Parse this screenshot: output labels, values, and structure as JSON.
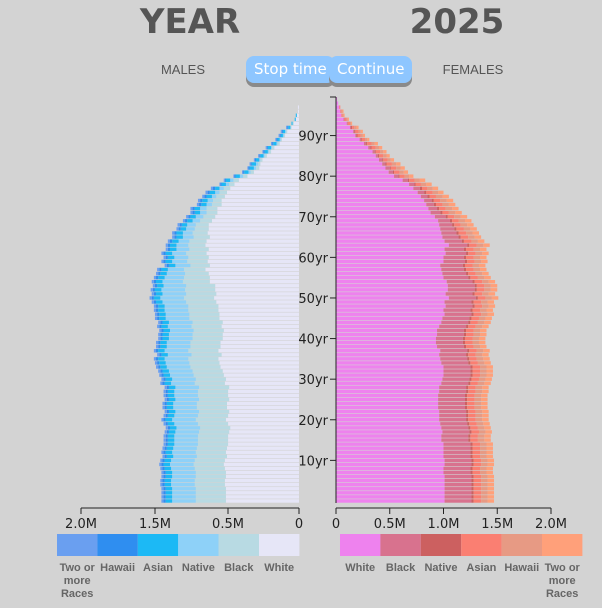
{
  "header": {
    "year_label": "YEAR",
    "year_value": "2025",
    "males_label": "MALES",
    "females_label": "FEMALES",
    "stop_button": "Stop time",
    "continue_button": "Continue"
  },
  "chart_data": {
    "type": "bar",
    "title": "YEAR 2025",
    "subtitle": "",
    "orientation": "horizontal-population-pyramid",
    "y_axis": {
      "ticks": [
        "10yr",
        "20yr",
        "30yr",
        "40yr",
        "50yr",
        "60yr",
        "70yr",
        "80yr",
        "90yr"
      ]
    },
    "x_axis_males": {
      "ticks": [
        "2.0M",
        "1.5M",
        "0.5M",
        "0"
      ]
    },
    "x_axis_females": {
      "ticks": [
        "0",
        "0.5M",
        "1.0M",
        "1.5M",
        "2.0M"
      ]
    },
    "male_legend": [
      {
        "name": "Two or more Races",
        "color": "#6a9ff0"
      },
      {
        "name": "Hawaii",
        "color": "#2f8ef0"
      },
      {
        "name": "Asian",
        "color": "#1cb9f5"
      },
      {
        "name": "Native",
        "color": "#8ed1f8"
      },
      {
        "name": "Black",
        "color": "#b8dae3"
      },
      {
        "name": "White",
        "color": "#e6e6f7"
      }
    ],
    "female_legend": [
      {
        "name": "White",
        "color": "#ee82ee"
      },
      {
        "name": "Black",
        "color": "#d8728e"
      },
      {
        "name": "Native",
        "color": "#cc6060"
      },
      {
        "name": "Asian",
        "color": "#fa7f72"
      },
      {
        "name": "Hawaii",
        "color": "#e79a84"
      },
      {
        "name": "Two or more Races",
        "color": "#ffa07a"
      }
    ],
    "male_series": {
      "White": [
        0.68,
        0.68,
        0.68,
        0.68,
        0.69,
        0.69,
        0.68,
        0.68,
        0.69,
        0.7,
        0.69,
        0.67,
        0.68,
        0.67,
        0.66,
        0.66,
        0.66,
        0.65,
        0.64,
        0.66,
        0.68,
        0.66,
        0.65,
        0.67,
        0.67,
        0.65,
        0.66,
        0.66,
        0.65,
        0.69,
        0.68,
        0.7,
        0.71,
        0.73,
        0.74,
        0.75,
        0.72,
        0.75,
        0.73,
        0.73,
        0.71,
        0.71,
        0.7,
        0.72,
        0.71,
        0.74,
        0.74,
        0.75,
        0.75,
        0.77,
        0.79,
        0.77,
        0.78,
        0.78,
        0.83,
        0.83,
        0.84,
        0.87,
        0.83,
        0.85,
        0.84,
        0.86,
        0.84,
        0.87,
        0.86,
        0.83,
        0.85,
        0.84,
        0.84,
        0.81,
        0.78,
        0.76,
        0.76,
        0.72,
        0.72,
        0.69,
        0.67,
        0.64,
        0.6,
        0.56,
        0.48,
        0.42,
        0.37,
        0.36,
        0.34,
        0.3,
        0.26,
        0.23,
        0.18,
        0.16,
        0.13,
        0.11,
        0.07,
        0.05,
        0.03,
        0.02,
        0.01,
        0.01,
        0.0,
        0.0
      ],
      "Black": [
        0.28,
        0.28,
        0.28,
        0.28,
        0.28,
        0.28,
        0.28,
        0.28,
        0.28,
        0.28,
        0.28,
        0.28,
        0.28,
        0.28,
        0.28,
        0.28,
        0.28,
        0.28,
        0.28,
        0.28,
        0.28,
        0.28,
        0.28,
        0.28,
        0.28,
        0.28,
        0.28,
        0.28,
        0.28,
        0.28,
        0.28,
        0.28,
        0.28,
        0.28,
        0.28,
        0.28,
        0.28,
        0.28,
        0.28,
        0.28,
        0.28,
        0.28,
        0.28,
        0.28,
        0.28,
        0.28,
        0.28,
        0.28,
        0.28,
        0.28,
        0.28,
        0.28,
        0.28,
        0.27,
        0.25,
        0.24,
        0.22,
        0.2,
        0.18,
        0.19,
        0.19,
        0.19,
        0.18,
        0.16,
        0.16,
        0.15,
        0.14,
        0.13,
        0.12,
        0.11,
        0.11,
        0.1,
        0.1,
        0.09,
        0.08,
        0.08,
        0.07,
        0.06,
        0.05,
        0.05,
        0.04,
        0.03,
        0.03,
        0.02,
        0.02,
        0.02,
        0.02,
        0.02,
        0.02,
        0.01,
        0.01,
        0.01,
        0.01,
        0.01,
        0.0,
        0.0,
        0.0,
        0.0,
        0.0,
        0.0
      ],
      "Native": [
        0.22,
        0.22,
        0.22,
        0.22,
        0.22,
        0.22,
        0.22,
        0.22,
        0.22,
        0.22,
        0.22,
        0.22,
        0.22,
        0.22,
        0.22,
        0.22,
        0.22,
        0.22,
        0.22,
        0.22,
        0.22,
        0.22,
        0.22,
        0.22,
        0.22,
        0.22,
        0.22,
        0.22,
        0.22,
        0.22,
        0.22,
        0.22,
        0.22,
        0.22,
        0.22,
        0.22,
        0.22,
        0.22,
        0.22,
        0.22,
        0.22,
        0.22,
        0.22,
        0.22,
        0.22,
        0.22,
        0.22,
        0.22,
        0.22,
        0.22,
        0.22,
        0.22,
        0.22,
        0.21,
        0.19,
        0.18,
        0.17,
        0.15,
        0.14,
        0.14,
        0.13,
        0.13,
        0.12,
        0.11,
        0.1,
        0.1,
        0.09,
        0.08,
        0.08,
        0.07,
        0.07,
        0.06,
        0.06,
        0.05,
        0.05,
        0.04,
        0.04,
        0.04,
        0.03,
        0.03,
        0.03,
        0.02,
        0.02,
        0.02,
        0.01,
        0.01,
        0.01,
        0.01,
        0.01,
        0.01,
        0.01,
        0.01,
        0.0,
        0.0,
        0.0,
        0.0,
        0.0,
        0.0,
        0.0,
        0.0
      ],
      "Asian": [
        0.06,
        0.06,
        0.06,
        0.06,
        0.06,
        0.06,
        0.06,
        0.06,
        0.06,
        0.06,
        0.06,
        0.06,
        0.06,
        0.06,
        0.06,
        0.06,
        0.06,
        0.06,
        0.06,
        0.06,
        0.06,
        0.06,
        0.06,
        0.06,
        0.06,
        0.06,
        0.06,
        0.06,
        0.06,
        0.06,
        0.06,
        0.06,
        0.06,
        0.06,
        0.06,
        0.06,
        0.06,
        0.06,
        0.06,
        0.06,
        0.06,
        0.06,
        0.06,
        0.06,
        0.06,
        0.06,
        0.06,
        0.06,
        0.06,
        0.06,
        0.06,
        0.06,
        0.06,
        0.06,
        0.06,
        0.06,
        0.06,
        0.06,
        0.06,
        0.06,
        0.06,
        0.06,
        0.06,
        0.06,
        0.06,
        0.06,
        0.06,
        0.05,
        0.05,
        0.05,
        0.05,
        0.05,
        0.05,
        0.05,
        0.05,
        0.05,
        0.05,
        0.04,
        0.04,
        0.04,
        0.04,
        0.04,
        0.04,
        0.04,
        0.03,
        0.03,
        0.03,
        0.03,
        0.03,
        0.02,
        0.02,
        0.02,
        0.02,
        0.01,
        0.01,
        0.01,
        0.0,
        0.0,
        0.0,
        0.0
      ],
      "Hawaii": [
        0.02,
        0.02,
        0.02,
        0.02,
        0.02,
        0.02,
        0.02,
        0.02,
        0.02,
        0.02,
        0.02,
        0.02,
        0.02,
        0.02,
        0.02,
        0.02,
        0.02,
        0.02,
        0.02,
        0.02,
        0.02,
        0.02,
        0.02,
        0.02,
        0.02,
        0.02,
        0.02,
        0.02,
        0.02,
        0.02,
        0.02,
        0.02,
        0.02,
        0.02,
        0.02,
        0.02,
        0.02,
        0.02,
        0.02,
        0.02,
        0.02,
        0.02,
        0.02,
        0.02,
        0.02,
        0.02,
        0.02,
        0.02,
        0.02,
        0.02,
        0.02,
        0.02,
        0.02,
        0.02,
        0.02,
        0.02,
        0.02,
        0.02,
        0.02,
        0.02,
        0.02,
        0.02,
        0.02,
        0.02,
        0.02,
        0.02,
        0.02,
        0.02,
        0.02,
        0.02,
        0.02,
        0.02,
        0.02,
        0.02,
        0.02,
        0.02,
        0.02,
        0.02,
        0.01,
        0.01,
        0.01,
        0.01,
        0.01,
        0.01,
        0.01,
        0.01,
        0.01,
        0.01,
        0.01,
        0.01,
        0.01,
        0.01,
        0.01,
        0.0,
        0.0,
        0.0,
        0.0,
        0.0,
        0.0,
        0.0
      ],
      "Two or more Races": [
        0.02,
        0.02,
        0.02,
        0.02,
        0.02,
        0.02,
        0.02,
        0.02,
        0.02,
        0.02,
        0.02,
        0.02,
        0.02,
        0.02,
        0.02,
        0.02,
        0.02,
        0.02,
        0.02,
        0.02,
        0.02,
        0.02,
        0.02,
        0.02,
        0.02,
        0.02,
        0.02,
        0.02,
        0.02,
        0.02,
        0.02,
        0.02,
        0.02,
        0.02,
        0.02,
        0.02,
        0.02,
        0.02,
        0.02,
        0.02,
        0.02,
        0.02,
        0.02,
        0.02,
        0.02,
        0.02,
        0.02,
        0.02,
        0.02,
        0.02,
        0.02,
        0.02,
        0.02,
        0.02,
        0.02,
        0.02,
        0.02,
        0.02,
        0.02,
        0.02,
        0.02,
        0.02,
        0.02,
        0.02,
        0.02,
        0.02,
        0.02,
        0.02,
        0.02,
        0.02,
        0.02,
        0.02,
        0.02,
        0.02,
        0.02,
        0.02,
        0.02,
        0.02,
        0.01,
        0.01,
        0.01,
        0.01,
        0.01,
        0.01,
        0.01,
        0.01,
        0.01,
        0.01,
        0.01,
        0.01,
        0.01,
        0.01,
        0.01,
        0.0,
        0.0,
        0.0,
        0.0,
        0.0,
        0.0,
        0.0
      ]
    },
    "female_series": {
      "White": [
        1.01,
        1.01,
        1.01,
        1.01,
        1.01,
        1.01,
        1.01,
        1.0,
        1.0,
        1.01,
        1.01,
        1.0,
        1.0,
        1.0,
        1.0,
        0.98,
        0.98,
        0.99,
        0.98,
        0.97,
        0.96,
        0.96,
        0.96,
        0.95,
        0.95,
        0.95,
        0.95,
        0.96,
        0.96,
        0.98,
        0.99,
        1.0,
        1.0,
        1.0,
        0.98,
        0.97,
        0.96,
        0.97,
        0.94,
        0.93,
        0.93,
        0.94,
        0.94,
        0.96,
        0.98,
        0.99,
        1.01,
        1.0,
        1.02,
        1.01,
        1.05,
        1.02,
        1.04,
        1.04,
        1.03,
        1.0,
        0.99,
        0.98,
        0.97,
        1.0,
        1.0,
        1.02,
        1.01,
        1.05,
        1.01,
        0.99,
        0.98,
        0.97,
        0.96,
        0.95,
        0.92,
        0.88,
        0.86,
        0.84,
        0.82,
        0.79,
        0.76,
        0.72,
        0.68,
        0.62,
        0.54,
        0.49,
        0.46,
        0.43,
        0.4,
        0.37,
        0.34,
        0.3,
        0.26,
        0.22,
        0.18,
        0.16,
        0.13,
        0.1,
        0.07,
        0.05,
        0.04,
        0.03,
        0.02,
        0.01
      ],
      "Black": [
        0.25,
        0.25,
        0.25,
        0.25,
        0.25,
        0.25,
        0.25,
        0.25,
        0.25,
        0.25,
        0.25,
        0.25,
        0.25,
        0.25,
        0.25,
        0.25,
        0.25,
        0.25,
        0.25,
        0.25,
        0.25,
        0.25,
        0.25,
        0.25,
        0.25,
        0.25,
        0.25,
        0.25,
        0.25,
        0.25,
        0.25,
        0.25,
        0.25,
        0.25,
        0.25,
        0.25,
        0.25,
        0.25,
        0.25,
        0.25,
        0.25,
        0.25,
        0.25,
        0.25,
        0.25,
        0.25,
        0.25,
        0.25,
        0.25,
        0.25,
        0.25,
        0.25,
        0.25,
        0.25,
        0.24,
        0.23,
        0.22,
        0.21,
        0.21,
        0.2,
        0.19,
        0.19,
        0.18,
        0.17,
        0.16,
        0.15,
        0.14,
        0.13,
        0.12,
        0.11,
        0.1,
        0.09,
        0.08,
        0.07,
        0.07,
        0.06,
        0.06,
        0.06,
        0.05,
        0.05,
        0.04,
        0.04,
        0.04,
        0.03,
        0.03,
        0.02,
        0.02,
        0.02,
        0.02,
        0.01,
        0.01,
        0.01,
        0.01,
        0.01,
        0.01,
        0.0,
        0.0,
        0.0,
        0.0,
        0.0
      ],
      "Native": [
        0.02,
        0.02,
        0.02,
        0.02,
        0.02,
        0.02,
        0.02,
        0.02,
        0.02,
        0.02,
        0.02,
        0.02,
        0.02,
        0.02,
        0.02,
        0.02,
        0.02,
        0.02,
        0.02,
        0.02,
        0.02,
        0.02,
        0.02,
        0.02,
        0.02,
        0.02,
        0.02,
        0.02,
        0.02,
        0.02,
        0.02,
        0.02,
        0.02,
        0.02,
        0.02,
        0.02,
        0.02,
        0.02,
        0.02,
        0.02,
        0.02,
        0.02,
        0.02,
        0.02,
        0.02,
        0.02,
        0.02,
        0.02,
        0.02,
        0.02,
        0.02,
        0.02,
        0.02,
        0.02,
        0.02,
        0.02,
        0.02,
        0.02,
        0.02,
        0.02,
        0.02,
        0.02,
        0.02,
        0.02,
        0.02,
        0.02,
        0.02,
        0.02,
        0.02,
        0.02,
        0.02,
        0.02,
        0.02,
        0.02,
        0.02,
        0.02,
        0.02,
        0.02,
        0.01,
        0.01,
        0.01,
        0.01,
        0.01,
        0.01,
        0.01,
        0.01,
        0.01,
        0.01,
        0.01,
        0.01,
        0.01,
        0.01,
        0.01,
        0.0,
        0.0,
        0.0,
        0.0,
        0.0,
        0.0,
        0.0
      ],
      "Asian": [
        0.07,
        0.07,
        0.07,
        0.07,
        0.07,
        0.07,
        0.07,
        0.07,
        0.07,
        0.07,
        0.07,
        0.07,
        0.07,
        0.07,
        0.07,
        0.07,
        0.07,
        0.07,
        0.07,
        0.07,
        0.07,
        0.07,
        0.07,
        0.07,
        0.07,
        0.07,
        0.07,
        0.07,
        0.07,
        0.07,
        0.07,
        0.07,
        0.07,
        0.07,
        0.07,
        0.07,
        0.07,
        0.07,
        0.07,
        0.07,
        0.07,
        0.07,
        0.07,
        0.07,
        0.07,
        0.07,
        0.07,
        0.07,
        0.07,
        0.07,
        0.07,
        0.07,
        0.07,
        0.07,
        0.07,
        0.07,
        0.07,
        0.07,
        0.07,
        0.07,
        0.07,
        0.07,
        0.07,
        0.07,
        0.07,
        0.07,
        0.07,
        0.07,
        0.06,
        0.06,
        0.06,
        0.06,
        0.06,
        0.06,
        0.06,
        0.06,
        0.06,
        0.05,
        0.05,
        0.05,
        0.05,
        0.05,
        0.05,
        0.05,
        0.04,
        0.04,
        0.04,
        0.04,
        0.04,
        0.03,
        0.03,
        0.03,
        0.02,
        0.02,
        0.02,
        0.01,
        0.01,
        0.01,
        0.0,
        0.0
      ],
      "Hawaii": [
        0.06,
        0.06,
        0.06,
        0.06,
        0.06,
        0.06,
        0.06,
        0.06,
        0.06,
        0.06,
        0.06,
        0.06,
        0.06,
        0.06,
        0.06,
        0.06,
        0.06,
        0.06,
        0.06,
        0.06,
        0.06,
        0.06,
        0.06,
        0.06,
        0.06,
        0.06,
        0.06,
        0.06,
        0.06,
        0.06,
        0.06,
        0.06,
        0.06,
        0.06,
        0.06,
        0.06,
        0.06,
        0.06,
        0.06,
        0.06,
        0.06,
        0.06,
        0.06,
        0.06,
        0.06,
        0.06,
        0.06,
        0.06,
        0.06,
        0.06,
        0.06,
        0.06,
        0.06,
        0.06,
        0.06,
        0.06,
        0.06,
        0.06,
        0.06,
        0.06,
        0.06,
        0.06,
        0.06,
        0.06,
        0.06,
        0.06,
        0.06,
        0.06,
        0.06,
        0.06,
        0.06,
        0.06,
        0.06,
        0.06,
        0.06,
        0.06,
        0.05,
        0.05,
        0.05,
        0.05,
        0.04,
        0.04,
        0.04,
        0.04,
        0.03,
        0.03,
        0.03,
        0.03,
        0.03,
        0.02,
        0.02,
        0.02,
        0.02,
        0.01,
        0.01,
        0.01,
        0.01,
        0.0,
        0.0,
        0.0
      ],
      "Two or more Races": [
        0.06,
        0.06,
        0.06,
        0.06,
        0.06,
        0.06,
        0.06,
        0.06,
        0.06,
        0.06,
        0.06,
        0.06,
        0.06,
        0.06,
        0.06,
        0.06,
        0.06,
        0.06,
        0.06,
        0.06,
        0.06,
        0.06,
        0.06,
        0.06,
        0.06,
        0.06,
        0.06,
        0.06,
        0.06,
        0.06,
        0.06,
        0.06,
        0.06,
        0.06,
        0.06,
        0.06,
        0.06,
        0.06,
        0.06,
        0.06,
        0.06,
        0.06,
        0.06,
        0.06,
        0.06,
        0.06,
        0.06,
        0.06,
        0.06,
        0.06,
        0.06,
        0.06,
        0.06,
        0.06,
        0.06,
        0.06,
        0.06,
        0.06,
        0.06,
        0.06,
        0.06,
        0.06,
        0.06,
        0.06,
        0.06,
        0.06,
        0.06,
        0.06,
        0.06,
        0.06,
        0.06,
        0.06,
        0.06,
        0.06,
        0.06,
        0.06,
        0.05,
        0.05,
        0.05,
        0.05,
        0.04,
        0.04,
        0.04,
        0.04,
        0.03,
        0.03,
        0.03,
        0.03,
        0.03,
        0.02,
        0.02,
        0.02,
        0.02,
        0.01,
        0.01,
        0.01,
        0.01,
        0.0,
        0.0,
        0.0
      ]
    }
  }
}
